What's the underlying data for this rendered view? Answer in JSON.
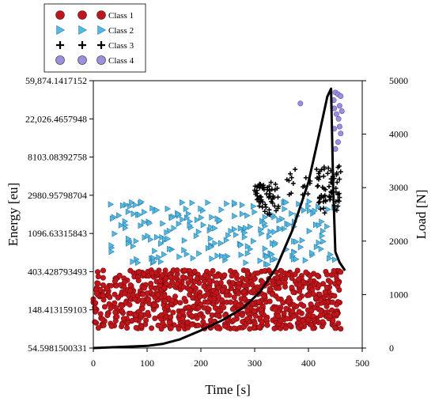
{
  "chart_data": {
    "type": "scatter",
    "xlabel": "Time [s]",
    "ylabel_left": "Energy [eu]",
    "ylabel_right": "Load [N]",
    "x_ticks": [
      "0",
      "100",
      "200",
      "300",
      "400",
      "500"
    ],
    "xlim": [
      0,
      500
    ],
    "left_axis_scale": "log",
    "left_ticks": [
      "59,874.1417152",
      "22,026.4657948",
      "8103.08392758",
      "2980.95798704",
      "1096.63315843",
      "403.428793493",
      "148.413159103",
      "54.5981500331"
    ],
    "left_lim_ln": [
      4,
      11
    ],
    "right_ticks": [
      "5000",
      "4000",
      "3000",
      "2000",
      "1000",
      "0"
    ],
    "right_lim": [
      0,
      5000
    ],
    "grid": false,
    "legend_position": "top-left, outside plot",
    "legend": [
      {
        "label": "Class 1",
        "marker": "circle",
        "color": "#c0161b"
      },
      {
        "label": "Class 2",
        "marker": "triangle-right",
        "color": "#54b8e3"
      },
      {
        "label": "Class 3",
        "marker": "plus",
        "color": "#000000"
      },
      {
        "label": "Class 4",
        "marker": "circle",
        "color": "#9a90dd"
      }
    ],
    "series": [
      {
        "name": "Class 1",
        "x_range": [
          0,
          460
        ],
        "energy_range": [
          90,
          420
        ],
        "approx_count": 900
      },
      {
        "name": "Class 2",
        "x_range": [
          30,
          450
        ],
        "energy_range": [
          480,
          2600
        ],
        "approx_count": 220
      },
      {
        "name": "Class 3",
        "x_range": [
          300,
          460
        ],
        "energy_range": [
          1800,
          6500
        ],
        "approx_count": 140
      },
      {
        "name": "Class 4",
        "points": [
          [
            385,
            33000
          ],
          [
            450,
            44000
          ],
          [
            455,
            42000
          ],
          [
            460,
            40000
          ],
          [
            448,
            29000
          ],
          [
            452,
            25000
          ],
          [
            456,
            22000
          ],
          [
            458,
            18000
          ],
          [
            460,
            15000
          ],
          [
            455,
            12000
          ],
          [
            450,
            10000
          ],
          [
            448,
            17000
          ],
          [
            458,
            31000
          ],
          [
            462,
            27000
          ],
          [
            447,
            36000
          ]
        ]
      }
    ],
    "load_curve": {
      "x": [
        0,
        50,
        100,
        130,
        160,
        200,
        240,
        280,
        310,
        340,
        370,
        400,
        420,
        435,
        442,
        446,
        450,
        458,
        468
      ],
      "load": [
        0,
        20,
        40,
        80,
        160,
        330,
        520,
        760,
        1050,
        1500,
        2200,
        3100,
        4000,
        4700,
        4850,
        3000,
        1800,
        1600,
        1450
      ]
    },
    "colors": {
      "class1": "#c0161b",
      "class2": "#54b8e3",
      "class3": "#000000",
      "class4": "#9a90dd",
      "load": "#000000"
    }
  }
}
